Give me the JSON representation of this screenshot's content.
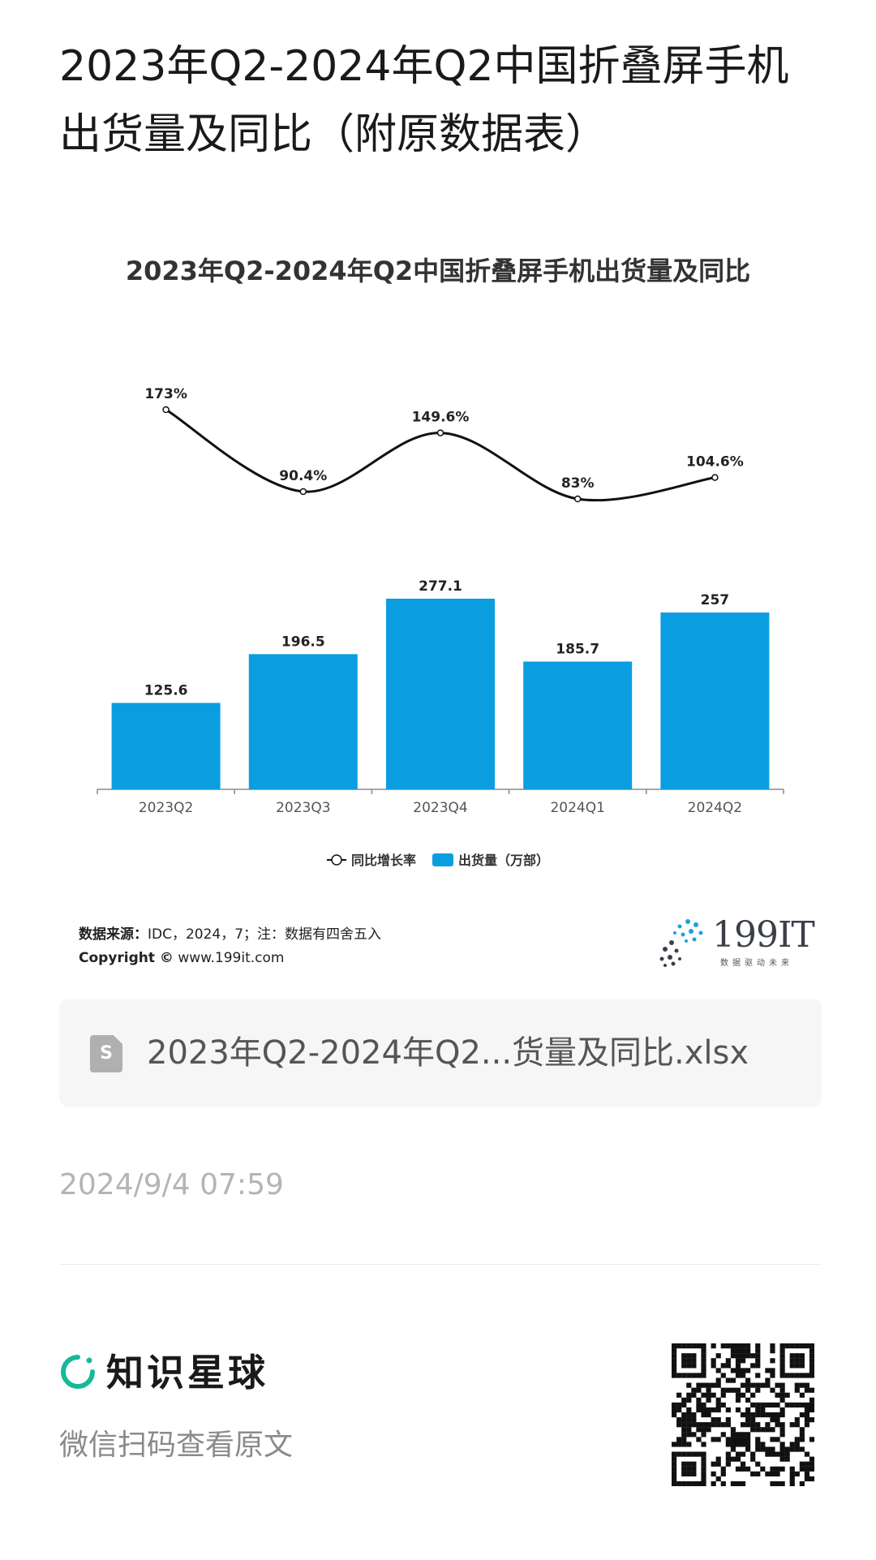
{
  "page": {
    "title": "2023年Q2-2024年Q2中国折叠屏手机出货量及同比（附原数据表）"
  },
  "chart_data": {
    "type": "bar",
    "title": "2023年Q2-2024年Q2中国折叠屏手机出货量及同比",
    "categories": [
      "2023Q2",
      "2023Q3",
      "2023Q4",
      "2024Q1",
      "2024Q2"
    ],
    "series": [
      {
        "name": "出货量（万部）",
        "type": "bar",
        "values": [
          125.6,
          196.5,
          277.1,
          185.7,
          257
        ],
        "labels": [
          "125.6",
          "196.5",
          "277.1",
          "185.7",
          "257"
        ],
        "color": "#0a9ee0"
      },
      {
        "name": "同比增长率",
        "type": "line",
        "values": [
          173,
          90.4,
          149.6,
          83,
          104.6
        ],
        "labels": [
          "173%",
          "90.4%",
          "149.6%",
          "83%",
          "104.6%"
        ],
        "color": "#111111"
      }
    ],
    "legend": [
      "同比增长率",
      "出货量（万部）"
    ],
    "legend_position": "bottom",
    "grid": false
  },
  "source": {
    "label": "数据来源：",
    "text": "IDC，2024，7；注：数据有四舍五入",
    "copyright_label": "Copyright ©",
    "copyright_site": "www.199it.com"
  },
  "logo": {
    "text": "199IT",
    "tagline": "数据驱动未来"
  },
  "file": {
    "name": "2023年Q2-2024年Q2...货量及同比.xlsx",
    "icon": "spreadsheet-file-icon",
    "icon_letter": "S"
  },
  "timestamp": "2024/9/4 07:59",
  "brand": {
    "name": "知识星球",
    "hint": "微信扫码查看原文",
    "accent": "#16b998"
  }
}
